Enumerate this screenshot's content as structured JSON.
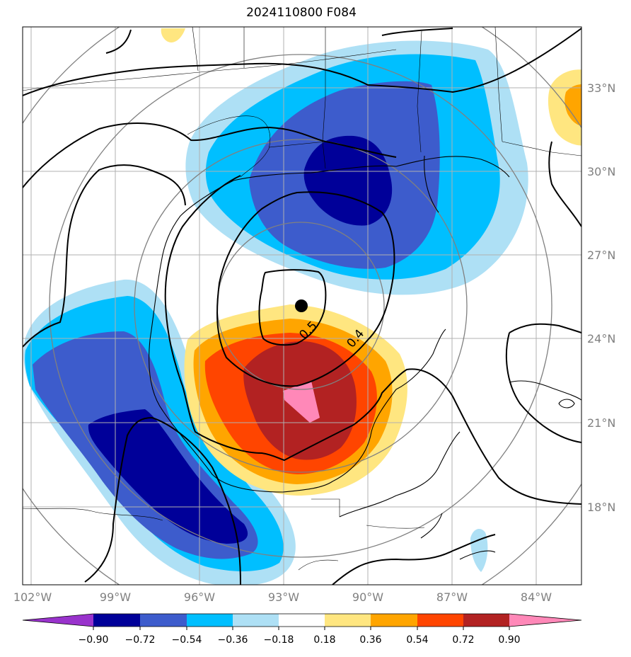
{
  "title": "2024110800 F084",
  "map": {
    "lon_labels": [
      "102°W",
      "99°W",
      "96°W",
      "93°W",
      "90°W",
      "87°W",
      "84°W"
    ],
    "lat_labels": [
      "33°N",
      "30°N",
      "27°N",
      "24°N",
      "21°N",
      "18°N"
    ],
    "contour_labels": [
      "0.5",
      "0.4"
    ],
    "center_marker": {
      "lon": -92.4,
      "lat": 25.2
    }
  },
  "colorbar": {
    "tick_labels": [
      "−0.90",
      "−0.72",
      "−0.54",
      "−0.36",
      "−0.18",
      "0.18",
      "0.36",
      "0.54",
      "0.72",
      "0.90"
    ],
    "colors": [
      "#9933cc",
      "#000099",
      "#3d5ccc",
      "#00bfff",
      "#aee0f5",
      "#ffffff",
      "#ffe680",
      "#ffa500",
      "#ff4500",
      "#b22222",
      "#ff88b8"
    ]
  }
}
